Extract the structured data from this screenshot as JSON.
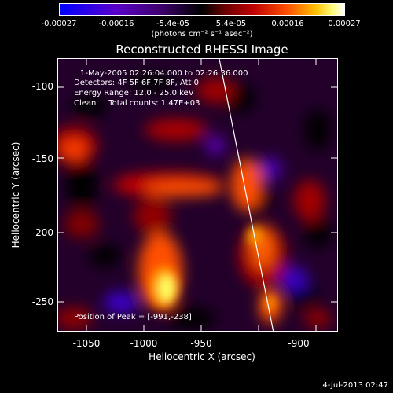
{
  "colorbar": {
    "ticks": [
      "-0.00027",
      "-0.00016",
      "-5.4e-05",
      "5.4e-05",
      "0.00016",
      "0.00027"
    ],
    "units": "(photons cm⁻² s⁻¹ asec⁻²)"
  },
  "title": "Reconstructed RHESSI Image",
  "info": {
    "time": "1-May-2005 02:26:04.000 to 02:26:36.000",
    "detectors": "Detectors: 4F 5F 6F 7F 8F, Att 0",
    "energy": "Energy Range: 12.0 - 25.0 keV",
    "clean": "Clean     Total counts: 1.47E+03",
    "peak": "Position of Peak = [-991,-238]"
  },
  "x_axis": {
    "label": "Heliocentric X (arcsec)",
    "ticks": [
      "-1050",
      "-1000",
      "-950",
      "-900"
    ]
  },
  "y_axis": {
    "label": "Heliocentric Y (arcsec)",
    "ticks": [
      "-100",
      "-150",
      "-200",
      "-250"
    ]
  },
  "footer_date": "4-Jul-2013 02:47"
}
